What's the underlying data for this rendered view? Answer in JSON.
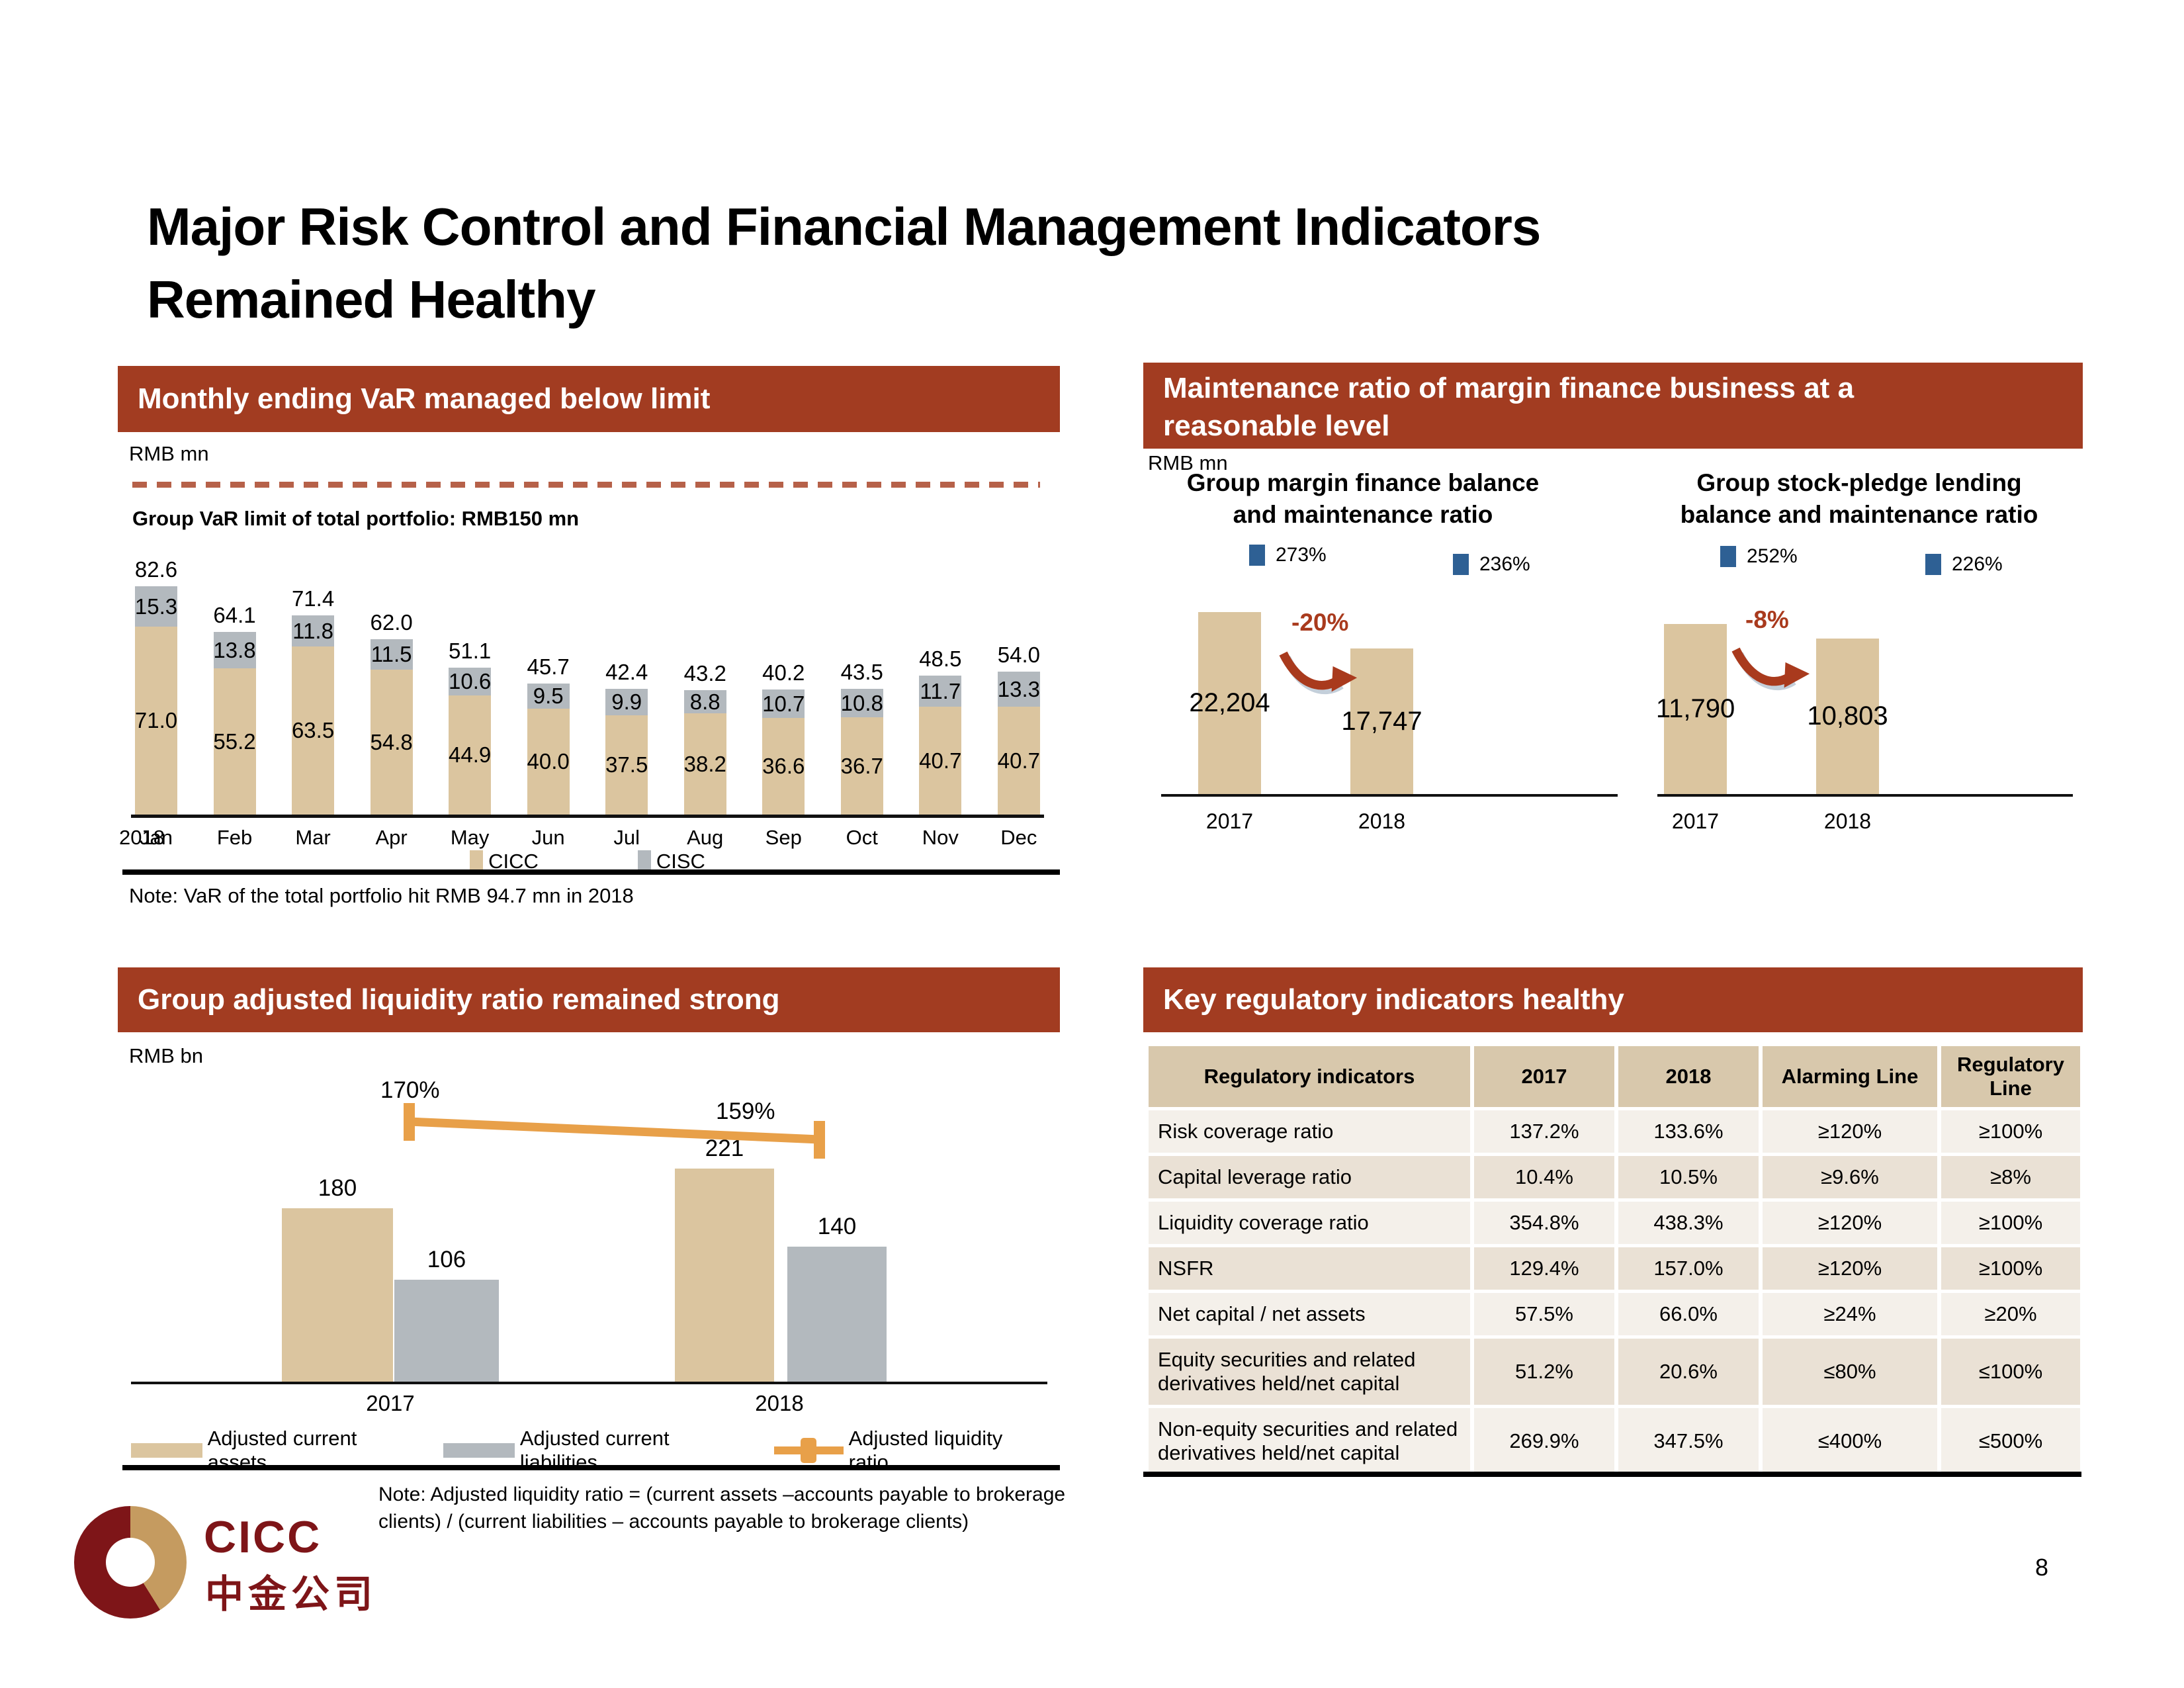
{
  "title": {
    "line1": "Major Risk Control and Financial Management Indicators",
    "line2": "Remained Healthy"
  },
  "page_number": "8",
  "logo": {
    "latin": "CICC",
    "cjk": "中金公司"
  },
  "colors": {
    "header_red": "#A23C21",
    "bar_tan": "#DBC59F",
    "bar_gray": "#B3B9BE",
    "ratio_blue": "#2E6094",
    "line_orange": "#E8A049",
    "change_red": "#A93A1D",
    "dashed_limit": "#B66149",
    "table_header_tan": "#D8C8AC",
    "row_light": "#F4F0EA",
    "row_dark": "#EAE1D5",
    "logo_maroon": "#7E1518",
    "logo_gold": "#C59B60"
  },
  "var_panel": {
    "header": "Monthly ending VaR managed below limit",
    "unit": "RMB mn",
    "limit_label": "Group VaR limit of total portfolio: RMB150 mn",
    "year_label": "2018",
    "note": "Note: VaR of the total portfolio hit RMB 94.7 mn in 2018"
  },
  "maintenance_panel": {
    "header_line1": "Maintenance ratio of margin finance business at a",
    "header_line2": "reasonable level",
    "unit": "RMB mn",
    "charts": [
      {
        "title_line1": "Group margin finance balance",
        "title_line2": "and maintenance ratio",
        "ratio_2017": "273%",
        "ratio_2018": "236%",
        "change": "-20%"
      },
      {
        "title_line1": "Group stock-pledge lending",
        "title_line2": "balance and maintenance ratio",
        "ratio_2017": "252%",
        "ratio_2018": "226%",
        "change": "-8%"
      }
    ]
  },
  "liquidity_panel": {
    "header": "Group adjusted liquidity ratio remained strong",
    "unit": "RMB bn",
    "ratio_labels": [
      "170%",
      "159%"
    ],
    "note": "Note: Adjusted liquidity ratio = (current assets –accounts payable to brokerage clients) / (current liabilities – accounts payable to brokerage clients)"
  },
  "table_panel": {
    "header": "Key regulatory indicators healthy"
  },
  "chart_data": [
    {
      "type": "bar",
      "subtype": "stacked",
      "title": "Monthly ending VaR managed below limit",
      "unit": "RMB mn",
      "x_prefix": "2018",
      "categories": [
        "Jan",
        "Feb",
        "Mar",
        "Apr",
        "May",
        "Jun",
        "Jul",
        "Aug",
        "Sep",
        "Oct",
        "Nov",
        "Dec"
      ],
      "series": [
        {
          "name": "CICC",
          "color": "#DBC59F",
          "values": [
            71.0,
            55.2,
            63.5,
            54.8,
            44.9,
            40.0,
            37.5,
            38.2,
            36.6,
            36.7,
            40.7,
            40.7
          ],
          "labels": [
            "71.0",
            "55.2",
            "63.5",
            "54.8",
            "44.9",
            "40.0",
            "37.5",
            "38.2",
            "36.6",
            "36.7",
            "40.7",
            "40.7"
          ]
        },
        {
          "name": "CISC",
          "color": "#B3B9BE",
          "values": [
            15.3,
            13.8,
            11.8,
            11.5,
            10.6,
            9.5,
            9.9,
            8.8,
            10.7,
            10.8,
            11.7,
            13.3
          ],
          "labels": [
            "15.3",
            "13.8",
            "11.8",
            "11.5",
            "10.6",
            "9.5",
            "9.9",
            "8.8",
            "10.7",
            "10.8",
            "11.7",
            "13.3"
          ]
        }
      ],
      "total_labels": [
        "82.6",
        "64.1",
        "71.4",
        "62.0",
        "51.1",
        "45.7",
        "42.4",
        "43.2",
        "40.2",
        "43.5",
        "48.5",
        "54.0"
      ],
      "limit_line": {
        "label": "Group VaR limit of total portfolio: RMB150 mn",
        "value": 150
      },
      "note": "Note: VaR of the total portfolio hit RMB 94.7 mn in 2018",
      "legend_position": "bottom"
    },
    {
      "type": "bar",
      "title": "Group margin finance balance and maintenance ratio",
      "unit": "RMB mn",
      "categories": [
        "2017",
        "2018"
      ],
      "values": [
        22204,
        17747
      ],
      "labels": [
        "22,204",
        "17,747"
      ],
      "change": "-20%",
      "maintenance_ratio": [
        "273%",
        "236%"
      ]
    },
    {
      "type": "bar",
      "title": "Group stock-pledge lending balance and maintenance ratio",
      "unit": "RMB mn",
      "categories": [
        "2017",
        "2018"
      ],
      "values": [
        11790,
        10803
      ],
      "labels": [
        "11,790",
        "10,803"
      ],
      "change": "-8%",
      "maintenance_ratio": [
        "252%",
        "226%"
      ]
    },
    {
      "type": "bar+line",
      "title": "Group adjusted liquidity ratio remained strong",
      "unit": "RMB bn",
      "categories": [
        "2017",
        "2018"
      ],
      "series": [
        {
          "name": "Adjusted current assets",
          "color": "#DBC59F",
          "values": [
            180,
            221
          ],
          "labels": [
            "180",
            "221"
          ]
        },
        {
          "name": "Adjusted current liabilities",
          "color": "#B3B9BE",
          "values": [
            106,
            140
          ],
          "labels": [
            "106",
            "140"
          ]
        },
        {
          "name": "Adjusted liquidity ratio",
          "type": "line",
          "color": "#E8A049",
          "values": [
            "170%",
            "159%"
          ]
        }
      ]
    },
    {
      "type": "table",
      "title": "Key regulatory indicators healthy",
      "columns": [
        "Regulatory indicators",
        "2017",
        "2018",
        "Alarming Line",
        "Regulatory Line"
      ],
      "rows": [
        [
          "Risk coverage ratio",
          "137.2%",
          "133.6%",
          "≥120%",
          "≥100%"
        ],
        [
          "Capital leverage ratio",
          "10.4%",
          "10.5%",
          "≥9.6%",
          "≥8%"
        ],
        [
          "Liquidity coverage ratio",
          "354.8%",
          "438.3%",
          "≥120%",
          "≥100%"
        ],
        [
          "NSFR",
          "129.4%",
          "157.0%",
          "≥120%",
          "≥100%"
        ],
        [
          "Net capital / net assets",
          "57.5%",
          "66.0%",
          "≥24%",
          "≥20%"
        ],
        [
          "Equity securities and related derivatives held/net capital",
          "51.2%",
          "20.6%",
          "≤80%",
          "≤100%"
        ],
        [
          "Non-equity securities and related derivatives held/net capital",
          "269.9%",
          "347.5%",
          "≤400%",
          "≤500%"
        ]
      ]
    }
  ]
}
